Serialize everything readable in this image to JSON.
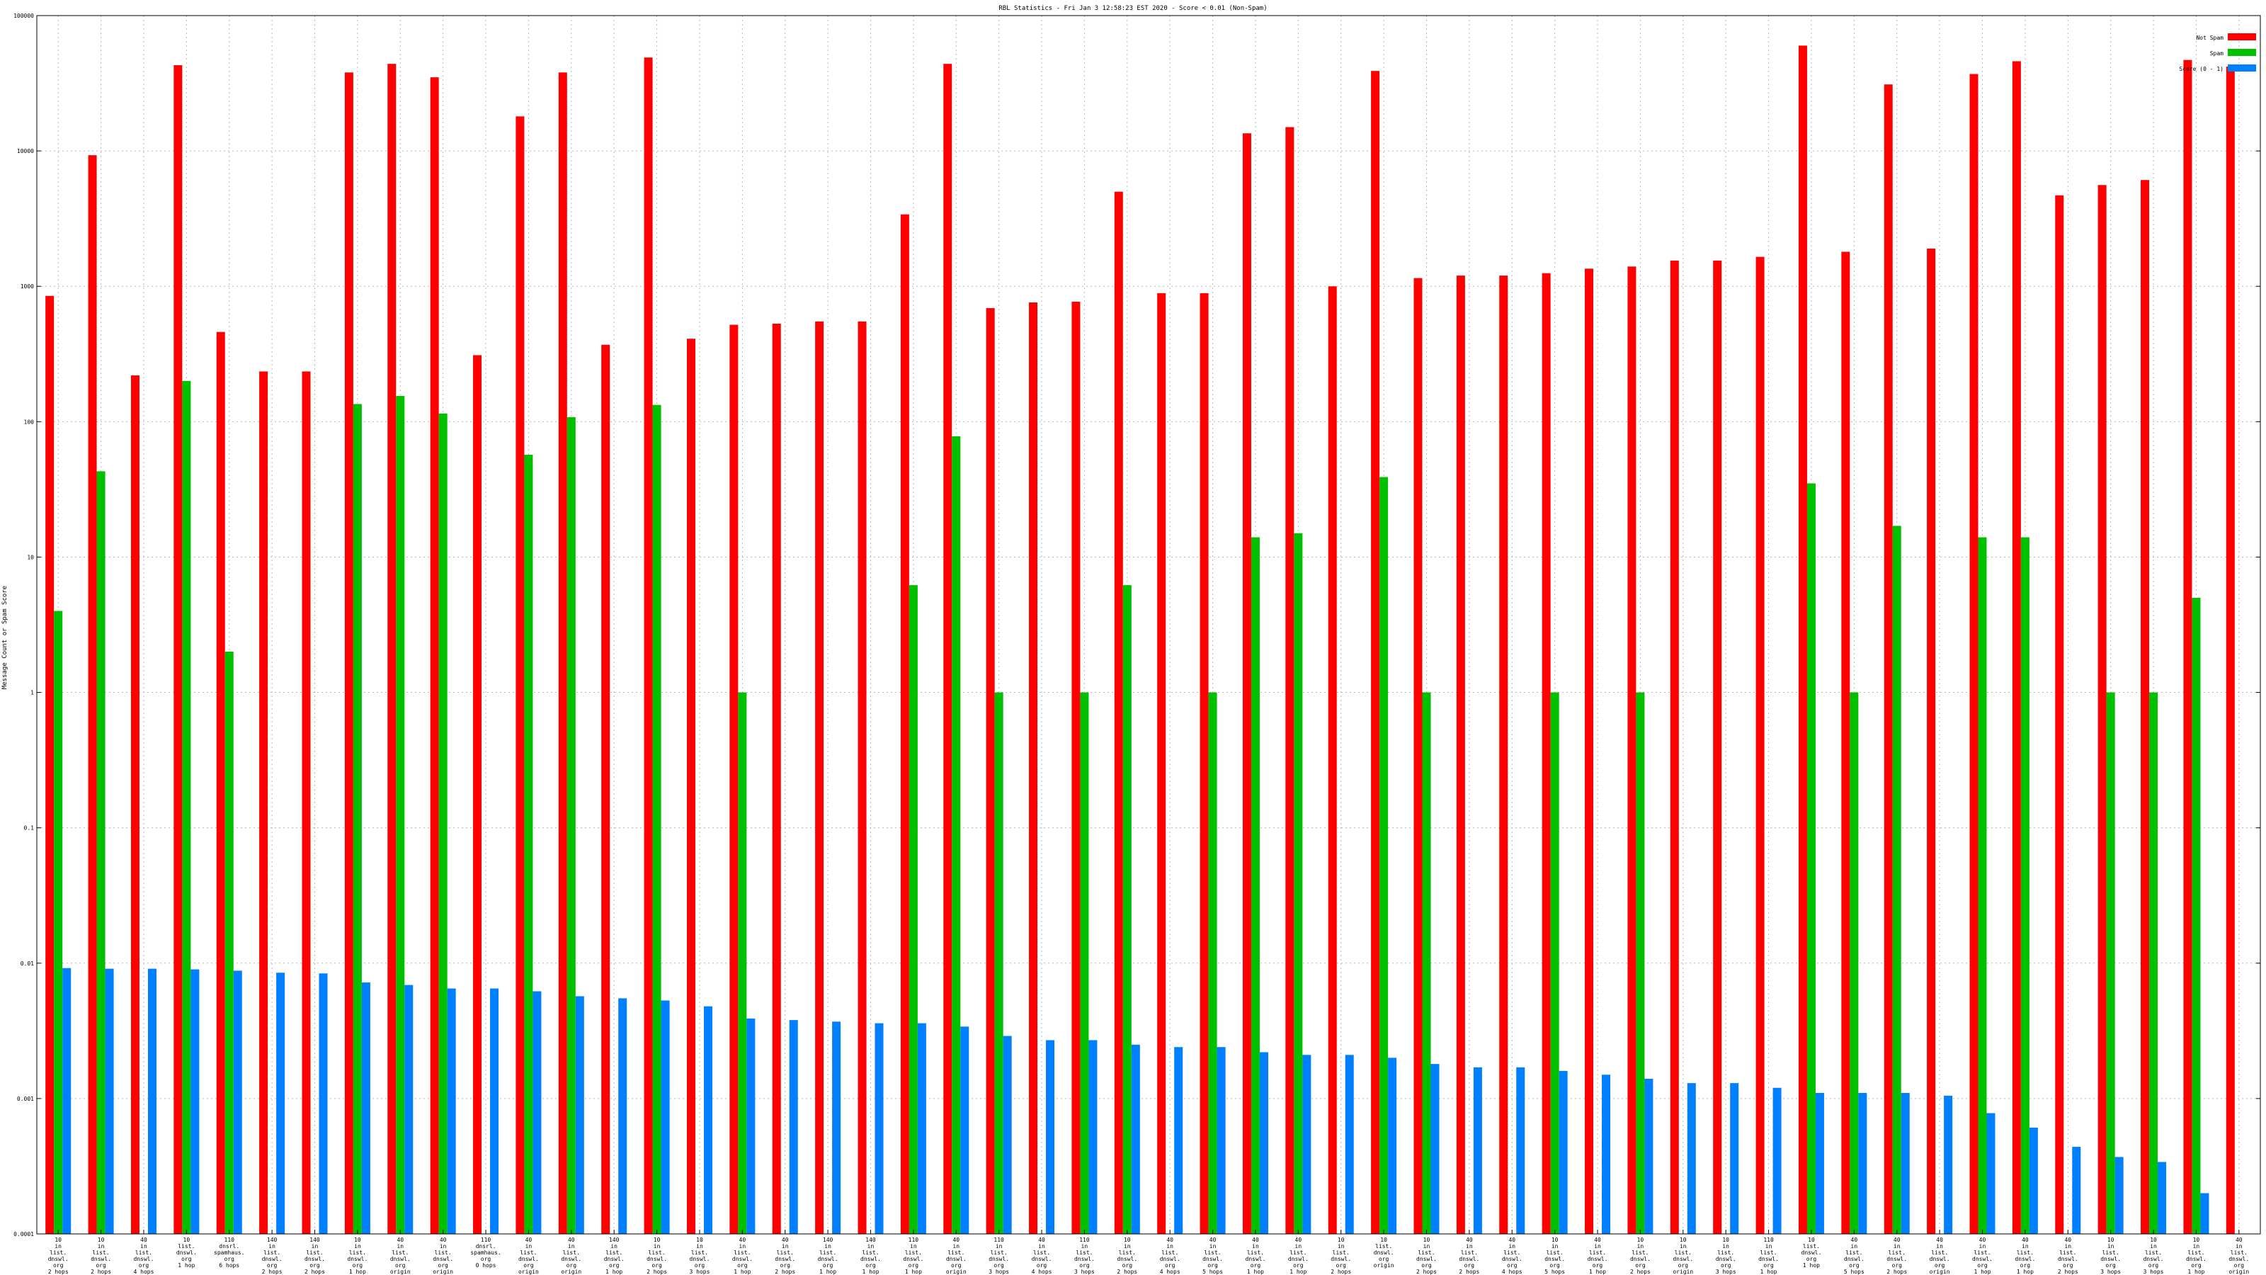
{
  "chart_data": {
    "type": "bar",
    "title": "RBL Statistics - Fri Jan  3 12:58:23 EST 2020 - Score < 0.01 (Non-Spam)",
    "xlabel": "",
    "ylabel": "Message Count or Spam Score",
    "yscale": "log",
    "ylim": [
      0.0001,
      100000
    ],
    "yticks": [
      "0.0001",
      "0.001",
      "0.01",
      "0.1",
      "1",
      "10",
      "100",
      "1000",
      "10000",
      "100000"
    ],
    "grid": true,
    "legend_position": "top-right",
    "categories": [
      [
        "10",
        "in",
        "list.",
        "dnswl.",
        "org",
        "2 hops"
      ],
      [
        "10",
        "in",
        "list.",
        "dnswl.",
        "org",
        "2 hops"
      ],
      [
        "40",
        "in",
        "list.",
        "dnswl.",
        "org",
        "4 hops"
      ],
      [
        "10",
        "list.",
        "dnswl.",
        "org",
        "1 hop"
      ],
      [
        "110",
        "dnsrl.",
        "spamhaus.",
        "org",
        "6 hops"
      ],
      [
        "140",
        "in",
        "list.",
        "dnswl.",
        "org",
        "2 hops"
      ],
      [
        "140",
        "in",
        "list.",
        "dnswl.",
        "org",
        "2 hops"
      ],
      [
        "10",
        "in",
        "list.",
        "dnswl.",
        "org",
        "1 hop"
      ],
      [
        "40",
        "in",
        "list.",
        "dnswl.",
        "org",
        "origin"
      ],
      [
        "40",
        "in",
        "list.",
        "dnswl.",
        "org",
        "origin"
      ],
      [
        "110",
        "dnsrl.",
        "spamhaus.",
        "org",
        "0 hops"
      ],
      [
        "40",
        "in",
        "list.",
        "dnswl.",
        "org",
        "origin"
      ],
      [
        "40",
        "in",
        "list.",
        "dnswl.",
        "org",
        "origin"
      ],
      [
        "140",
        "in",
        "list.",
        "dnswl.",
        "org",
        "1 hop"
      ],
      [
        "10",
        "in",
        "list.",
        "dnswl.",
        "org",
        "2 hops"
      ],
      [
        "10",
        "in",
        "list.",
        "dnswl.",
        "org",
        "3 hops"
      ],
      [
        "40",
        "in",
        "list.",
        "dnswl.",
        "org",
        "1 hop"
      ],
      [
        "40",
        "in",
        "list.",
        "dnswl.",
        "org",
        "2 hops"
      ],
      [
        "140",
        "in",
        "list.",
        "dnswl.",
        "org",
        "1 hop"
      ],
      [
        "140",
        "in",
        "list.",
        "dnswl.",
        "org",
        "1 hop"
      ],
      [
        "110",
        "in",
        "list.",
        "dnswl.",
        "org",
        "1 hop"
      ],
      [
        "40",
        "in",
        "list.",
        "dnswl.",
        "org",
        "origin"
      ],
      [
        "110",
        "in",
        "list.",
        "dnswl.",
        "org",
        "3 hops"
      ],
      [
        "40",
        "in",
        "list.",
        "dnswl.",
        "org",
        "4 hops"
      ],
      [
        "110",
        "in",
        "list.",
        "dnswl.",
        "org",
        "3 hops"
      ],
      [
        "10",
        "in",
        "list.",
        "dnswl.",
        "org",
        "2 hops"
      ],
      [
        "40",
        "in",
        "list.",
        "dnswl.",
        "org",
        "4 hops"
      ],
      [
        "40",
        "in",
        "list.",
        "dnswl.",
        "org",
        "5 hops"
      ],
      [
        "40",
        "in",
        "list.",
        "dnswl.",
        "org",
        "1 hop"
      ],
      [
        "40",
        "in",
        "list.",
        "dnswl.",
        "org",
        "1 hop"
      ],
      [
        "10",
        "in",
        "list.",
        "dnswl.",
        "org",
        "2 hops"
      ],
      [
        "10",
        "list.",
        "dnswl.",
        "org",
        "origin"
      ],
      [
        "10",
        "in",
        "list.",
        "dnswl.",
        "org",
        "2 hops"
      ],
      [
        "40",
        "in",
        "list.",
        "dnswl.",
        "org",
        "2 hops"
      ],
      [
        "40",
        "in",
        "list.",
        "dnswl.",
        "org",
        "4 hops"
      ],
      [
        "10",
        "in",
        "list.",
        "dnswl.",
        "org",
        "5 hops"
      ],
      [
        "40",
        "in",
        "list.",
        "dnswl.",
        "org",
        "1 hop"
      ],
      [
        "10",
        "in",
        "list.",
        "dnswl.",
        "org",
        "2 hops"
      ],
      [
        "10",
        "in",
        "list.",
        "dnswl.",
        "org",
        "origin"
      ],
      [
        "10",
        "in",
        "list.",
        "dnswl.",
        "org",
        "3 hops"
      ],
      [
        "110",
        "in",
        "list.",
        "dnswl.",
        "org",
        "1 hop"
      ],
      [
        "10",
        "list.",
        "dnswl.",
        "org",
        "1 hop"
      ],
      [
        "40",
        "in",
        "list.",
        "dnswl.",
        "org",
        "5 hops"
      ],
      [
        "40",
        "in",
        "list.",
        "dnswl.",
        "org",
        "2 hops"
      ],
      [
        "40",
        "in",
        "list.",
        "dnswl.",
        "org",
        "origin"
      ],
      [
        "40",
        "in",
        "list.",
        "dnswl.",
        "org",
        "1 hop"
      ],
      [
        "40",
        "in",
        "list.",
        "dnswl.",
        "org",
        "1 hop"
      ],
      [
        "40",
        "in",
        "list.",
        "dnswl.",
        "org",
        "2 hops"
      ],
      [
        "10",
        "in",
        "list.",
        "dnswl.",
        "org",
        "3 hops"
      ],
      [
        "10",
        "in",
        "list.",
        "dnswl.",
        "org",
        "3 hops"
      ],
      [
        "10",
        "in",
        "list.",
        "dnswl.",
        "org",
        "1 hop"
      ],
      [
        "40",
        "in",
        "list.",
        "dnswl.",
        "org",
        "origin"
      ]
    ],
    "series": [
      {
        "name": "Not Spam",
        "color": "#ff0000",
        "values": [
          850,
          9300,
          220,
          43000,
          460,
          235,
          235,
          38000,
          44000,
          35000,
          310,
          18000,
          38000,
          370,
          49000,
          410,
          520,
          530,
          550,
          550,
          3400,
          44000,
          690,
          760,
          770,
          5000,
          890,
          890,
          13500,
          15000,
          1000,
          39000,
          1150,
          1200,
          1200,
          1250,
          1350,
          1400,
          1550,
          1550,
          1650,
          60000,
          1800,
          31000,
          1900,
          37000,
          46000,
          4700,
          5600,
          6100,
          47000,
          42000
        ]
      },
      {
        "name": "Spam",
        "color": "#00c000",
        "values": [
          4.0,
          43,
          0,
          200,
          2.0,
          0,
          0,
          135,
          155,
          115,
          0,
          57,
          108,
          0,
          133,
          0,
          1,
          0,
          0,
          0,
          6.2,
          78,
          1,
          0,
          1,
          6.2,
          0,
          1,
          14,
          15,
          0,
          39,
          1,
          0,
          0,
          1,
          0,
          1,
          0,
          0,
          0,
          35,
          1,
          17,
          0,
          14,
          14,
          0,
          1,
          1,
          5.0,
          0
        ]
      },
      {
        "name": "Score (0 - 1)",
        "color": "#0080ff",
        "values": [
          0.0092,
          0.0091,
          0.0091,
          0.009,
          0.0088,
          0.0085,
          0.0084,
          0.0072,
          0.0069,
          0.0065,
          0.0065,
          0.0062,
          0.0057,
          0.0055,
          0.0053,
          0.0048,
          0.0039,
          0.0038,
          0.0037,
          0.0036,
          0.0036,
          0.0034,
          0.0029,
          0.0027,
          0.0027,
          0.0025,
          0.0024,
          0.0024,
          0.0022,
          0.0021,
          0.0021,
          0.002,
          0.0018,
          0.0017,
          0.0017,
          0.0016,
          0.0015,
          0.0014,
          0.0013,
          0.0013,
          0.0012,
          0.0011,
          0.0011,
          0.0011,
          0.00105,
          0.00078,
          0.00061,
          0.00044,
          0.00037,
          0.00034,
          0.0002,
          0
        ]
      }
    ]
  }
}
